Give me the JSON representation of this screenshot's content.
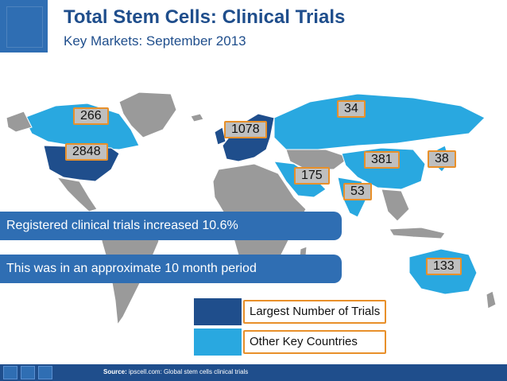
{
  "header": {
    "title": "Total Stem Cells: Clinical Trials",
    "subtitle": "Key Markets: September 2013"
  },
  "callouts": [
    {
      "label": "266",
      "region": "Canada"
    },
    {
      "label": "2848",
      "region": "USA"
    },
    {
      "label": "1078",
      "region": "Europe"
    },
    {
      "label": "34",
      "region": "Russia"
    },
    {
      "label": "175",
      "region": "Middle East"
    },
    {
      "label": "381",
      "region": "China"
    },
    {
      "label": "38",
      "region": "Japan"
    },
    {
      "label": "53",
      "region": "India"
    },
    {
      "label": "133",
      "region": "Australia"
    }
  ],
  "banners": {
    "growth": "Registered clinical trials increased 10.6%",
    "period": "This was in an approximate 10 month period"
  },
  "legend": {
    "largest": "Largest Number of Trials",
    "other": "Other Key Countries"
  },
  "colors": {
    "largest": "#1f4e8c",
    "other": "#29a8e0",
    "land": "#9a9a9a",
    "accent": "#e8902a"
  },
  "footer": {
    "source_label": "Source:",
    "source_text": "ipscell.com: Global stem cells clinical trials"
  }
}
